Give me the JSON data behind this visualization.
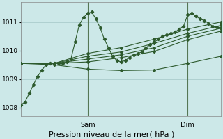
{
  "background_color": "#cce8e8",
  "grid_color": "#aacccc",
  "line_color": "#2d5a2d",
  "marker_color": "#2d5a2d",
  "xlabel": "Pression niveau de la mer( hPa )",
  "xlabel_fontsize": 8,
  "yticks": [
    1008,
    1009,
    1010,
    1011
  ],
  "ylim": [
    1007.7,
    1011.7
  ],
  "xlim": [
    0,
    48
  ],
  "vlines": [
    16,
    40
  ],
  "vline_labels": [
    "Sam",
    "Dim"
  ],
  "series": [
    {
      "x": [
        0,
        1,
        2,
        3,
        4,
        5,
        6,
        7,
        8,
        9,
        10,
        11,
        12,
        13,
        14,
        15,
        16,
        17,
        18,
        19,
        20,
        21,
        22,
        23,
        24,
        25,
        26,
        27,
        28,
        29,
        30,
        31,
        32,
        33,
        34,
        35,
        36,
        37,
        38,
        39,
        40,
        41,
        42,
        43,
        44,
        45,
        46,
        47,
        48
      ],
      "y": [
        1008.1,
        1008.2,
        1008.5,
        1008.8,
        1009.1,
        1009.3,
        1009.5,
        1009.55,
        1009.55,
        1009.55,
        1009.55,
        1009.6,
        1009.7,
        1010.3,
        1010.9,
        1011.15,
        1011.3,
        1011.35,
        1011.1,
        1010.8,
        1010.4,
        1010.1,
        1009.8,
        1009.65,
        1009.6,
        1009.65,
        1009.75,
        1009.85,
        1009.9,
        1009.95,
        1010.1,
        1010.2,
        1010.3,
        1010.4,
        1010.5,
        1010.55,
        1010.6,
        1010.65,
        1010.75,
        1010.85,
        1011.25,
        1011.3,
        1011.2,
        1011.1,
        1011.05,
        1010.95,
        1010.85,
        1010.82,
        1010.8
      ]
    },
    {
      "x": [
        0,
        8,
        16,
        24,
        32,
        40,
        48
      ],
      "y": [
        1009.55,
        1009.55,
        1009.9,
        1010.1,
        1010.4,
        1010.75,
        1011.0
      ]
    },
    {
      "x": [
        0,
        8,
        16,
        24,
        32,
        40,
        48
      ],
      "y": [
        1009.55,
        1009.55,
        1009.8,
        1009.95,
        1010.25,
        1010.6,
        1010.88
      ]
    },
    {
      "x": [
        0,
        8,
        16,
        24,
        32,
        40,
        48
      ],
      "y": [
        1009.55,
        1009.55,
        1009.7,
        1009.85,
        1010.1,
        1010.5,
        1010.78
      ]
    },
    {
      "x": [
        0,
        8,
        16,
        24,
        32,
        40,
        48
      ],
      "y": [
        1009.55,
        1009.55,
        1009.6,
        1009.75,
        1009.97,
        1010.38,
        1010.68
      ]
    },
    {
      "x": [
        0,
        8,
        16,
        24,
        32,
        40,
        48
      ],
      "y": [
        1009.55,
        1009.5,
        1009.35,
        1009.3,
        1009.32,
        1009.55,
        1009.8
      ]
    }
  ]
}
